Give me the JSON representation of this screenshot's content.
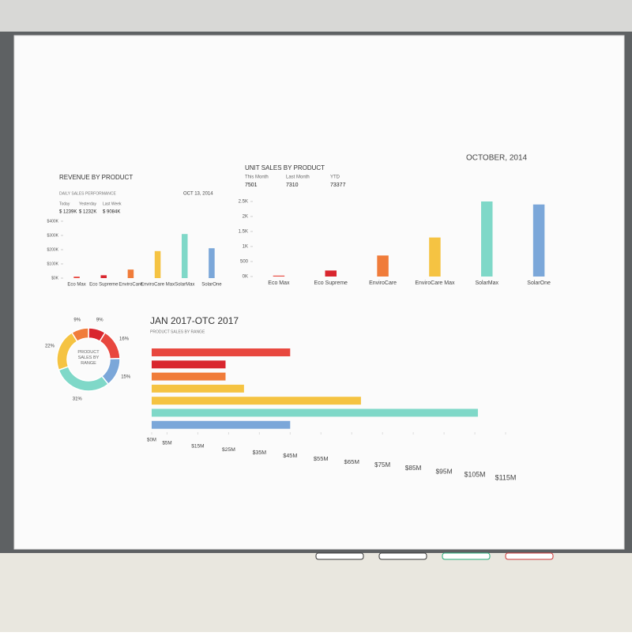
{
  "chart_data": [
    {
      "type": "bar",
      "title": "REVENUE BY PRODUCT",
      "subtitle": "DAILY SALES PERFORMANCE",
      "date": "OCT 13, 2014",
      "stats": [
        {
          "label": "Today",
          "value": "$ 1239K"
        },
        {
          "label": "Yesterday",
          "value": "$ 1232K"
        },
        {
          "label": "Last Week",
          "value": "$ 9084K"
        }
      ],
      "categories": [
        "Eco Max",
        "Eco Supreme",
        "EnviroCare",
        "EnviroCare Max",
        "SolarMax",
        "SolarOne"
      ],
      "values": [
        10,
        20,
        60,
        190,
        310,
        210
      ],
      "colors": [
        "#e8473e",
        "#d9262e",
        "#f07c3a",
        "#f5c342",
        "#7fd8c8",
        "#7ba7d9"
      ],
      "ylim": [
        0,
        400
      ],
      "yticks": [
        {
          "value": 0,
          "label": "$0K"
        },
        {
          "value": 100,
          "label": "$100K"
        },
        {
          "value": 200,
          "label": "$200K"
        },
        {
          "value": 300,
          "label": "$300K"
        },
        {
          "value": 400,
          "label": "$400K"
        }
      ]
    },
    {
      "type": "bar",
      "title": "UNIT SALES BY PRODUCT",
      "date": "OCTOBER, 2014",
      "stats": [
        {
          "label": "This Month",
          "value": "7501"
        },
        {
          "label": "Last Month",
          "value": "7310"
        },
        {
          "label": "YTD",
          "value": "73377"
        }
      ],
      "categories": [
        "Eco Max",
        "Eco Supreme",
        "EnviroCare",
        "EnviroCare Max",
        "SolarMax",
        "SolarOne"
      ],
      "values": [
        30,
        200,
        700,
        1300,
        2500,
        2400
      ],
      "colors": [
        "#e8473e",
        "#d9262e",
        "#f07c3a",
        "#f5c342",
        "#7fd8c8",
        "#7ba7d9"
      ],
      "ylim": [
        0,
        2500
      ],
      "yticks": [
        {
          "value": 0,
          "label": "0K"
        },
        500,
        {
          "value": 1000,
          "label": "1K"
        },
        {
          "value": 1500,
          "label": "1.5K"
        },
        {
          "value": 2000,
          "label": "2K"
        },
        {
          "value": 2500,
          "label": "2.5K"
        }
      ]
    },
    {
      "type": "pie",
      "center_label": "PRODUCT SALES BY RANGE",
      "values": [
        9,
        16,
        15,
        31,
        22,
        9
      ],
      "value_labels": [
        "9%",
        "16%",
        "15%",
        "31%",
        "22%",
        "9%"
      ],
      "colors": [
        "#d9262e",
        "#e8473e",
        "#7ba7d9",
        "#7fd8c8",
        "#f5c342",
        "#f07c3a"
      ]
    },
    {
      "type": "hbar",
      "title": "JAN 2017-OTC 2017",
      "subtitle": "PRODUCT SALES BY RANGE",
      "values": [
        45,
        24,
        24,
        30,
        68,
        106,
        45
      ],
      "colors": [
        "#e8473e",
        "#d9262e",
        "#f07c3a",
        "#f5c342",
        "#f5c342",
        "#7fd8c8",
        "#7ba7d9"
      ],
      "xlim": [
        0,
        115
      ],
      "xticks": [
        {
          "value": 0,
          "label": "$0M"
        },
        {
          "value": 5,
          "label": "$5M"
        },
        {
          "value": 15,
          "label": "$15M"
        },
        {
          "value": 25,
          "label": "$25M"
        },
        {
          "value": 35,
          "label": "$35M"
        },
        {
          "value": 45,
          "label": "$45M"
        },
        {
          "value": 55,
          "label": "$55M"
        },
        {
          "value": 65,
          "label": "$65M"
        },
        {
          "value": 75,
          "label": "$75M"
        },
        {
          "value": 85,
          "label": "$85M"
        },
        {
          "value": 95,
          "label": "$95M"
        },
        {
          "value": 105,
          "label": "$105M"
        },
        {
          "value": 115,
          "label": "$115M"
        }
      ]
    }
  ]
}
